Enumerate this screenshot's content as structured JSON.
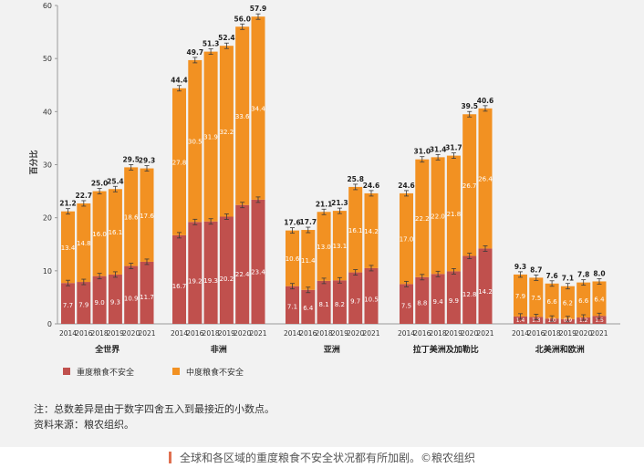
{
  "colors": {
    "severe": "#c0504d",
    "moderate": "#f29122",
    "panel_bg": "#f2f2f2",
    "axis": "#999999",
    "text": "#222222"
  },
  "chart_data": {
    "type": "bar",
    "stacked": true,
    "ylabel": "百分比",
    "ylim": [
      0,
      60
    ],
    "yticks": [
      0,
      10,
      20,
      30,
      40,
      50,
      60
    ],
    "legend": [
      "重度粮食不安全",
      "中度粮食不安全"
    ],
    "groups": [
      {
        "name": "全世界",
        "years": [
          "2014",
          "2016",
          "2018",
          "2019",
          "2020",
          "2021"
        ],
        "severe": [
          7.7,
          7.9,
          9.0,
          9.3,
          10.9,
          11.7
        ],
        "moderate": [
          13.4,
          14.8,
          16.0,
          16.1,
          18.6,
          17.6
        ],
        "total": [
          21.2,
          22.7,
          25.0,
          25.4,
          29.5,
          29.3
        ]
      },
      {
        "name": "非洲",
        "years": [
          "2014",
          "2016",
          "2018",
          "2019",
          "2020",
          "2021"
        ],
        "severe": [
          16.7,
          19.2,
          19.3,
          20.2,
          22.4,
          23.4
        ],
        "moderate": [
          27.8,
          30.5,
          31.9,
          32.2,
          33.6,
          34.4
        ],
        "total": [
          44.4,
          49.7,
          51.3,
          52.4,
          56.0,
          57.9
        ]
      },
      {
        "name": "亚洲",
        "years": [
          "2014",
          "2016",
          "2018",
          "2019",
          "2020",
          "2021"
        ],
        "severe": [
          7.1,
          6.4,
          8.1,
          8.2,
          9.7,
          10.5
        ],
        "moderate": [
          10.6,
          11.4,
          13.0,
          13.1,
          16.1,
          14.2
        ],
        "total": [
          17.6,
          17.7,
          21.1,
          21.3,
          25.8,
          24.6
        ]
      },
      {
        "name": "拉丁美洲及加勒比",
        "years": [
          "2014",
          "2016",
          "2018",
          "2019",
          "2020",
          "2021"
        ],
        "severe": [
          7.5,
          8.8,
          9.4,
          9.9,
          12.8,
          14.2
        ],
        "moderate": [
          17.0,
          22.2,
          22.0,
          21.8,
          26.7,
          26.4
        ],
        "total": [
          24.6,
          31.0,
          31.4,
          31.7,
          39.5,
          40.6
        ]
      },
      {
        "name": "北美洲和欧洲",
        "years": [
          "2014",
          "2016",
          "2018",
          "2019",
          "2020",
          "2021"
        ],
        "severe": [
          1.4,
          1.3,
          1.0,
          0.9,
          1.2,
          1.5
        ],
        "moderate": [
          7.9,
          7.5,
          6.6,
          6.2,
          6.6,
          6.4
        ],
        "total": [
          9.3,
          8.7,
          7.6,
          7.1,
          7.8,
          8.0
        ]
      }
    ]
  },
  "notes": {
    "note1": "注：总数差异是由于数字四舍五入到最接近的小数点。",
    "note2": "资料来源：粮农组织。"
  },
  "caption": "全球和各区域的重度粮食不安全状况都有所加剧。©粮农组织"
}
